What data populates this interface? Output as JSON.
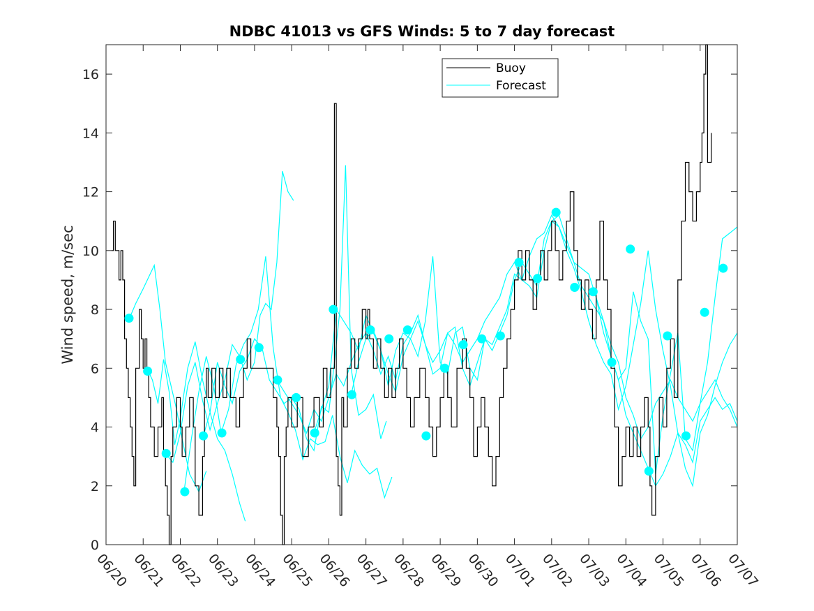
{
  "chart_data": {
    "type": "line",
    "title": "NDBC 41013 vs GFS Winds: 5 to 7 day forecast",
    "xlabel": "",
    "ylabel": "Wind speed, m/sec",
    "xlim": [
      0,
      17
    ],
    "ylim": [
      0,
      17
    ],
    "yticks": [
      0,
      2,
      4,
      6,
      8,
      10,
      12,
      14,
      16
    ],
    "xticks": [
      0,
      1,
      2,
      3,
      4,
      5,
      6,
      7,
      8,
      9,
      10,
      11,
      12,
      13,
      14,
      15,
      16,
      17
    ],
    "xtick_labels": [
      "06/20",
      "06/21",
      "06/22",
      "06/23",
      "06/24",
      "06/25",
      "06/26",
      "06/27",
      "06/28",
      "06/29",
      "06/30",
      "07/01",
      "07/02",
      "07/03",
      "07/04",
      "07/05",
      "07/06",
      "07/07"
    ],
    "x_units": "days since 06/20",
    "grid": false,
    "legend_position": "top-right",
    "colors": {
      "buoy": "#000000",
      "forecast": "#00ffff"
    },
    "series": [
      {
        "name": "Buoy",
        "x": [
          0.15,
          0.2,
          0.25,
          0.35,
          0.4,
          0.45,
          0.5,
          0.55,
          0.6,
          0.65,
          0.7,
          0.75,
          0.8,
          0.9,
          0.95,
          1.0,
          1.05,
          1.1,
          1.15,
          1.2,
          1.3,
          1.4,
          1.5,
          1.55,
          1.6,
          1.65,
          1.7,
          1.75,
          1.8,
          1.9,
          2.0,
          2.05,
          2.15,
          2.25,
          2.35,
          2.4,
          2.5,
          2.6,
          2.65,
          2.7,
          2.75,
          2.85,
          2.95,
          3.05,
          3.15,
          3.25,
          3.35,
          3.5,
          3.6,
          3.7,
          3.8,
          3.9,
          4.0,
          4.1,
          4.2,
          4.3,
          4.5,
          4.6,
          4.65,
          4.7,
          4.75,
          4.8,
          4.85,
          4.9,
          5.0,
          5.15,
          5.3,
          5.45,
          5.6,
          5.75,
          5.85,
          5.95,
          6.05,
          6.15,
          6.2,
          6.25,
          6.3,
          6.35,
          6.4,
          6.5,
          6.6,
          6.7,
          6.8,
          6.9,
          7.0,
          7.05,
          7.1,
          7.2,
          7.3,
          7.4,
          7.5,
          7.6,
          7.7,
          7.8,
          7.9,
          8.0,
          8.1,
          8.2,
          8.3,
          8.45,
          8.6,
          8.7,
          8.8,
          8.9,
          9.0,
          9.1,
          9.2,
          9.3,
          9.45,
          9.6,
          9.7,
          9.8,
          9.9,
          10.0,
          10.1,
          10.2,
          10.3,
          10.4,
          10.5,
          10.6,
          10.7,
          10.8,
          10.9,
          11.0,
          11.1,
          11.2,
          11.3,
          11.4,
          11.5,
          11.6,
          11.7,
          11.8,
          11.9,
          12.0,
          12.1,
          12.2,
          12.3,
          12.4,
          12.5,
          12.6,
          12.7,
          12.8,
          12.9,
          13.0,
          13.1,
          13.2,
          13.3,
          13.4,
          13.5,
          13.6,
          13.7,
          13.8,
          13.9,
          14.0,
          14.1,
          14.2,
          14.3,
          14.4,
          14.5,
          14.6,
          14.65,
          14.7,
          14.8,
          14.9,
          15.0,
          15.1,
          15.2,
          15.3,
          15.4,
          15.5,
          15.6,
          15.7,
          15.8,
          15.9,
          16.0,
          16.05,
          16.1,
          16.15,
          16.2,
          16.3
        ],
        "values": [
          10,
          11,
          10,
          9,
          10,
          9,
          7,
          6,
          5,
          4,
          3,
          2,
          6,
          8,
          7,
          6,
          7,
          6,
          5,
          4,
          3,
          4,
          5,
          3,
          2,
          1,
          0,
          3,
          4,
          5,
          4,
          3,
          4,
          5,
          4,
          2,
          1,
          3,
          5,
          6,
          5,
          6,
          5,
          6,
          5,
          6,
          5,
          4,
          5,
          6,
          7,
          6,
          6,
          6,
          6,
          6,
          5,
          4,
          3,
          1,
          0,
          3,
          4,
          5,
          4,
          5,
          3,
          4,
          5,
          4,
          6,
          5,
          6,
          15,
          3,
          2,
          1,
          5,
          4,
          6,
          7,
          6,
          7,
          8,
          7,
          8,
          7,
          6,
          7,
          6,
          5,
          6,
          5,
          6,
          7,
          6,
          5,
          4,
          5,
          6,
          5,
          4,
          3,
          4,
          5,
          6,
          5,
          4,
          6,
          7,
          6,
          5,
          3,
          4,
          5,
          4,
          3,
          2,
          3,
          5,
          6,
          7,
          8,
          9,
          10,
          9,
          10,
          9,
          8,
          9,
          10,
          9,
          10,
          11,
          10,
          9,
          10,
          11,
          12,
          10,
          9,
          8,
          9,
          8,
          7,
          9,
          11,
          9,
          8,
          6,
          4,
          2,
          3,
          4,
          3,
          4,
          3,
          4,
          5,
          4,
          2,
          1,
          3,
          5,
          4,
          6,
          7,
          5,
          9,
          11,
          13,
          12,
          11,
          12,
          13,
          14,
          16,
          17,
          13,
          14
        ]
      },
      {
        "name": "Forecast",
        "segments": [
          {
            "x": [
              0.6,
              0.8,
              1.0,
              1.15,
              1.3,
              1.45,
              1.6,
              1.75,
              1.9,
              2.05,
              2.25,
              2.5,
              2.7
            ],
            "values": [
              7.6,
              8.2,
              8.7,
              9.1,
              9.5,
              8.0,
              6.2,
              5.4,
              4.6,
              3.6,
              2.4,
              1.8,
              2.5
            ]
          },
          {
            "x": [
              1.1,
              1.25,
              1.4,
              1.55,
              1.7,
              1.85,
              2.0,
              2.2,
              2.4,
              2.6,
              2.8,
              3.0,
              3.2,
              3.4,
              3.6,
              3.75
            ],
            "values": [
              6.0,
              5.6,
              4.8,
              6.3,
              5.2,
              3.4,
              4.3,
              6.0,
              6.9,
              5.6,
              4.5,
              3.6,
              3.2,
              2.4,
              1.4,
              0.8
            ]
          },
          {
            "x": [
              1.6,
              1.8,
              2.0,
              2.2,
              2.4,
              2.6,
              2.8,
              3.0,
              3.2,
              3.4,
              3.6,
              3.8,
              4.0,
              4.15,
              4.3,
              4.45,
              4.6,
              4.75,
              4.9,
              5.05
            ],
            "values": [
              3.1,
              2.8,
              3.8,
              5.4,
              6.2,
              4.9,
              3.9,
              4.8,
              5.6,
              6.8,
              6.4,
              5.6,
              6.2,
              7.8,
              8.2,
              8.0,
              9.6,
              12.7,
              12.0,
              11.7
            ]
          },
          {
            "x": [
              2.1,
              2.3,
              2.5,
              2.7,
              2.9,
              3.1,
              3.3,
              3.5,
              3.7,
              3.9,
              4.1,
              4.3,
              4.5,
              4.7,
              4.9,
              5.1,
              5.3,
              5.5,
              5.7,
              5.9,
              6.1,
              6.3,
              6.5,
              6.7,
              6.9,
              7.1,
              7.3,
              7.5,
              7.7
            ],
            "values": [
              1.8,
              3.6,
              5.2,
              6.4,
              5.4,
              3.8,
              4.6,
              6.1,
              6.8,
              7.2,
              8.0,
              9.8,
              6.7,
              5.0,
              4.5,
              3.9,
              2.9,
              3.6,
              3.4,
              3.5,
              4.4,
              3.0,
              2.1,
              3.2,
              2.7,
              2.4,
              2.6,
              1.6,
              2.3
            ]
          },
          {
            "x": [
              2.6,
              2.8,
              3.0,
              3.2,
              3.4,
              3.6,
              3.8,
              4.0,
              4.2,
              4.4,
              4.6,
              4.8,
              5.0,
              5.2,
              5.4,
              5.6,
              5.8,
              6.0,
              6.15,
              6.3,
              6.45,
              6.6,
              6.8,
              7.0,
              7.2,
              7.4,
              7.55
            ],
            "values": [
              3.6,
              4.5,
              6.2,
              5.4,
              4.8,
              5.9,
              6.3,
              7.0,
              6.7,
              5.6,
              5.2,
              4.8,
              5.0,
              4.6,
              3.6,
              3.2,
              4.7,
              4.5,
              6.2,
              8.0,
              12.9,
              6.0,
              4.4,
              4.6,
              5.1,
              3.6,
              4.2
            ]
          },
          {
            "x": [
              4.6,
              4.8,
              5.0,
              5.2,
              5.4,
              5.6,
              5.8,
              6.0,
              6.2,
              6.4,
              6.6,
              6.8,
              7.0,
              7.2,
              7.4,
              7.6,
              7.8,
              8.0,
              8.2,
              8.4,
              8.6,
              8.8,
              9.0,
              9.2,
              9.4,
              9.6,
              9.8,
              10.0,
              10.2,
              10.4,
              10.6,
              10.8,
              11.0,
              11.2,
              11.4,
              11.6,
              11.8,
              12.0,
              12.2,
              12.4,
              12.6,
              12.8,
              13.0,
              13.2,
              13.4,
              13.6,
              13.8,
              14.0,
              14.2,
              14.4,
              14.6,
              14.8,
              15.0,
              15.2,
              15.4,
              15.6,
              15.8,
              16.0,
              16.2,
              16.4,
              16.6,
              16.8,
              17.0
            ],
            "values": [
              5.6,
              5.2,
              4.8,
              4.4,
              3.8,
              4.6,
              4.2,
              5.0,
              5.8,
              5.4,
              6.2,
              6.8,
              7.2,
              6.6,
              5.8,
              6.4,
              5.6,
              6.8,
              7.2,
              7.8,
              6.8,
              6.2,
              6.6,
              7.2,
              6.8,
              6.2,
              6.6,
              7.0,
              7.6,
              8.0,
              8.4,
              9.2,
              9.6,
              9.0,
              9.8,
              10.4,
              10.6,
              11.2,
              10.8,
              10.2,
              9.6,
              9.4,
              9.2,
              8.4,
              7.6,
              6.8,
              6.2,
              5.0,
              4.4,
              3.6,
              4.0,
              4.8,
              5.2,
              5.6,
              5.0,
              4.6,
              4.2,
              4.8,
              5.2,
              5.6,
              5.0,
              4.6,
              4.0
            ]
          },
          {
            "x": [
              5.6,
              5.8,
              6.0,
              6.2,
              6.4,
              6.6,
              6.8,
              7.0,
              7.2,
              7.4,
              7.6,
              7.8,
              8.0,
              8.2,
              8.4,
              8.6,
              8.8,
              9.0,
              9.2,
              9.4,
              9.6,
              9.8,
              10.0,
              10.2,
              10.4,
              10.6,
              10.8,
              11.0,
              11.2,
              11.4,
              11.6,
              11.8,
              12.0,
              12.2,
              12.4,
              12.6,
              12.8,
              13.0,
              13.2,
              13.4,
              13.6,
              13.8,
              14.0,
              14.2,
              14.4,
              14.6,
              14.8,
              15.0,
              15.2,
              15.4,
              15.6,
              15.8,
              16.0,
              16.2,
              16.4,
              16.6,
              16.8,
              17.0
            ],
            "values": [
              3.8,
              4.6,
              5.4,
              8.0,
              7.6,
              7.2,
              6.6,
              7.8,
              7.2,
              6.6,
              5.8,
              5.2,
              6.4,
              7.0,
              7.6,
              6.8,
              5.8,
              6.0,
              7.2,
              7.4,
              6.0,
              5.4,
              6.2,
              7.0,
              6.8,
              7.4,
              8.0,
              9.2,
              9.0,
              8.8,
              8.4,
              10.0,
              11.0,
              11.2,
              10.4,
              9.6,
              8.8,
              8.4,
              8.0,
              7.6,
              6.4,
              5.6,
              4.4,
              3.8,
              3.2,
              2.6,
              2.0,
              2.4,
              3.0,
              3.8,
              2.6,
              2.0,
              3.8,
              4.4,
              5.4,
              6.2,
              6.8,
              7.2
            ]
          },
          {
            "x": [
              6.6,
              6.8,
              7.0,
              7.2,
              7.4,
              7.6,
              7.8,
              8.0,
              8.2,
              8.4,
              8.6,
              8.8,
              9.0,
              9.2,
              9.4,
              9.6,
              9.8,
              10.0,
              10.2,
              10.4,
              10.6,
              10.8,
              11.0,
              11.2,
              11.4,
              11.6,
              11.8,
              12.0,
              12.2,
              12.4,
              12.6,
              12.8,
              13.0,
              13.2,
              13.4,
              13.6,
              13.8,
              14.0,
              14.2,
              14.4,
              14.6,
              14.8,
              15.0,
              15.2,
              15.4,
              15.6,
              15.8,
              16.0,
              16.2,
              16.4,
              16.6,
              16.8,
              17.0
            ],
            "values": [
              5.1,
              6.2,
              7.0,
              7.3,
              6.6,
              5.4,
              6.6,
              7.2,
              7.0,
              6.4,
              7.6,
              9.8,
              6.2,
              5.8,
              7.2,
              7.4,
              6.0,
              5.6,
              7.0,
              6.6,
              7.2,
              7.8,
              9.0,
              9.6,
              9.2,
              8.8,
              10.4,
              11.0,
              10.8,
              10.0,
              9.4,
              8.6,
              7.6,
              6.8,
              6.2,
              5.8,
              4.6,
              5.4,
              6.8,
              8.2,
              10.0,
              8.0,
              6.6,
              5.4,
              3.8,
              3.4,
              2.8,
              4.2,
              4.6,
              5.0,
              4.6,
              4.8,
              4.2
            ]
          },
          {
            "x": [
              13.2,
              13.4,
              13.6,
              13.8,
              14.0,
              14.2,
              14.4,
              14.6,
              14.8,
              15.0,
              15.2,
              15.4,
              15.6,
              15.8,
              16.0,
              16.2,
              16.4,
              16.6,
              16.8,
              17.0
            ],
            "values": [
              8.4,
              7.2,
              6.4,
              5.6,
              6.0,
              8.6,
              7.6,
              7.0,
              2.4,
              4.4,
              5.8,
              7.2,
              3.6,
              3.2,
              4.8,
              6.2,
              8.4,
              10.4,
              10.6,
              10.8
            ]
          }
        ]
      }
    ],
    "forecast_markers": {
      "x": [
        0.62,
        1.12,
        1.62,
        2.12,
        2.62,
        3.12,
        3.62,
        4.12,
        4.62,
        5.12,
        5.62,
        6.12,
        6.62,
        7.12,
        7.62,
        8.12,
        8.62,
        9.12,
        9.62,
        10.12,
        10.62,
        11.12,
        11.62,
        12.12,
        12.62,
        13.12,
        13.62,
        14.12,
        14.62,
        15.12,
        15.62,
        16.12,
        16.62
      ],
      "values": [
        7.7,
        5.9,
        3.1,
        1.8,
        3.7,
        3.8,
        6.3,
        6.7,
        5.6,
        5.0,
        3.8,
        8.0,
        5.1,
        7.3,
        7.0,
        7.3,
        3.7,
        6.0,
        6.8,
        7.0,
        7.1,
        9.6,
        9.05,
        11.3,
        8.75,
        8.6,
        6.2,
        10.05,
        2.5,
        7.1,
        3.7,
        7.9,
        9.4
      ]
    }
  }
}
